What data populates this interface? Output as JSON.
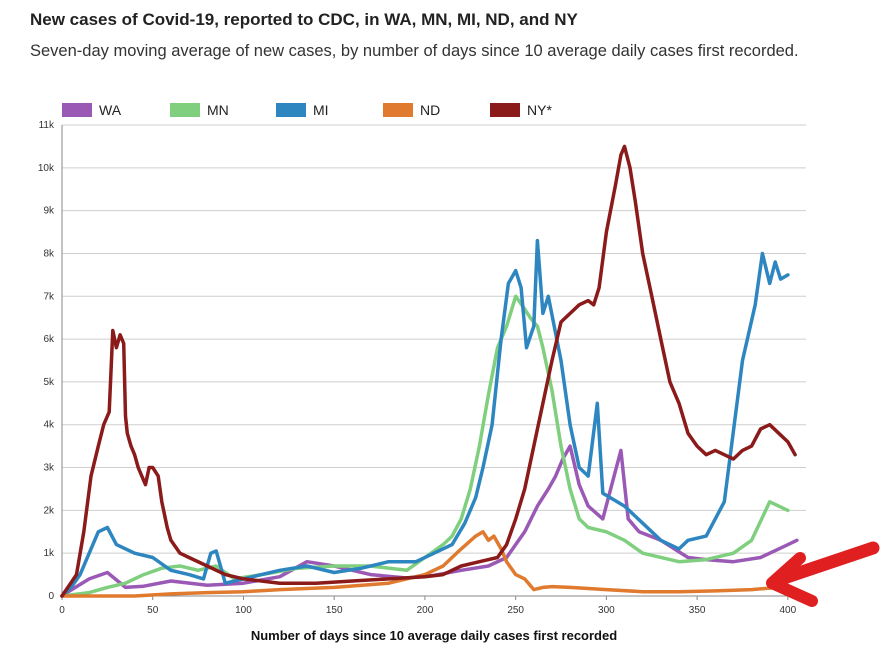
{
  "title": "New cases of Covid-19, reported to CDC, in WA, MN, MI, ND, and NY",
  "subtitle": "Seven-day moving average of new cases, by number of days since 10 average daily cases first recorded.",
  "chart_data": {
    "type": "line",
    "xlabel": "Number of days since 10 average daily cases first recorded",
    "ylabel": "",
    "xlim": [
      0,
      410
    ],
    "ylim": [
      0,
      11000
    ],
    "x_ticks": [
      0,
      50,
      100,
      150,
      200,
      250,
      300,
      350,
      400
    ],
    "x_tick_labels": [
      "0",
      "50",
      "100",
      "150",
      "200",
      "250",
      "300",
      "350",
      "400"
    ],
    "y_ticks": [
      0,
      1000,
      2000,
      3000,
      4000,
      5000,
      6000,
      7000,
      8000,
      9000,
      10000,
      11000
    ],
    "y_tick_labels": [
      "0",
      "1k",
      "2k",
      "3k",
      "4k",
      "5k",
      "6k",
      "7k",
      "8k",
      "9k",
      "10k",
      "11k"
    ],
    "grid": true,
    "legend_position": "top",
    "series": [
      {
        "name": "WA",
        "color": "#9b59b6",
        "x": [
          0,
          15,
          25,
          35,
          45,
          60,
          80,
          100,
          120,
          135,
          150,
          170,
          190,
          205,
          220,
          235,
          245,
          255,
          262,
          268,
          272,
          276,
          280,
          285,
          290,
          298,
          303,
          308,
          312,
          318,
          330,
          345,
          355,
          370,
          385,
          395,
          405
        ],
        "y": [
          10,
          400,
          550,
          200,
          230,
          350,
          250,
          300,
          450,
          800,
          700,
          500,
          420,
          480,
          600,
          700,
          900,
          1500,
          2100,
          2500,
          2800,
          3200,
          3500,
          2600,
          2100,
          1800,
          2600,
          3400,
          1800,
          1500,
          1300,
          900,
          850,
          800,
          900,
          1100,
          1300
        ]
      },
      {
        "name": "MN",
        "color": "#7fcf7f",
        "x": [
          0,
          15,
          25,
          35,
          45,
          55,
          65,
          75,
          85,
          95,
          110,
          130,
          150,
          170,
          190,
          200,
          210,
          215,
          220,
          225,
          230,
          235,
          240,
          245,
          250,
          255,
          258,
          262,
          265,
          270,
          275,
          280,
          285,
          290,
          300,
          310,
          320,
          340,
          355,
          370,
          380,
          390,
          400
        ],
        "y": [
          0,
          80,
          200,
          300,
          500,
          650,
          700,
          600,
          700,
          400,
          500,
          650,
          700,
          700,
          600,
          900,
          1200,
          1400,
          1800,
          2500,
          3500,
          4700,
          5800,
          6300,
          7000,
          6700,
          6500,
          6300,
          5800,
          4800,
          3500,
          2500,
          1800,
          1600,
          1500,
          1300,
          1000,
          800,
          850,
          1000,
          1300,
          2200,
          2000
        ]
      },
      {
        "name": "MI",
        "color": "#2e86c1",
        "x": [
          0,
          5,
          10,
          15,
          20,
          25,
          30,
          40,
          50,
          60,
          70,
          78,
          82,
          85,
          90,
          100,
          110,
          120,
          135,
          150,
          165,
          180,
          195,
          205,
          215,
          222,
          228,
          232,
          237,
          242,
          246,
          250,
          253,
          256,
          260,
          262,
          265,
          268,
          275,
          280,
          285,
          290,
          295,
          298,
          302,
          310,
          320,
          330,
          340,
          345,
          355,
          365,
          375,
          382,
          386,
          390,
          393,
          396,
          400
        ],
        "y": [
          0,
          200,
          500,
          1000,
          1500,
          1600,
          1200,
          1000,
          900,
          600,
          500,
          400,
          1000,
          1050,
          300,
          400,
          500,
          600,
          700,
          550,
          650,
          800,
          800,
          1000,
          1200,
          1700,
          2300,
          3000,
          4000,
          6000,
          7300,
          7600,
          7200,
          5800,
          6300,
          8300,
          6600,
          7000,
          5500,
          4000,
          3000,
          2800,
          4500,
          2400,
          2300,
          2100,
          1700,
          1300,
          1100,
          1300,
          1400,
          2200,
          5500,
          6800,
          8000,
          7300,
          7800,
          7400,
          7500
        ]
      },
      {
        "name": "ND",
        "color": "#e07a2e",
        "x": [
          0,
          20,
          40,
          60,
          80,
          100,
          120,
          150,
          180,
          200,
          210,
          220,
          228,
          232,
          235,
          238,
          242,
          245,
          250,
          255,
          260,
          265,
          270,
          280,
          300,
          320,
          340,
          360,
          380,
          395
        ],
        "y": [
          0,
          0,
          0,
          50,
          80,
          100,
          150,
          200,
          300,
          500,
          700,
          1100,
          1400,
          1500,
          1300,
          1400,
          1100,
          800,
          500,
          400,
          150,
          200,
          220,
          200,
          150,
          100,
          100,
          120,
          150,
          200
        ]
      },
      {
        "name": "NY*",
        "color": "#8b1a1a",
        "x": [
          0,
          8,
          12,
          16,
          20,
          23,
          26,
          28,
          30,
          32,
          34,
          35,
          36,
          38,
          40,
          42,
          44,
          46,
          48,
          50,
          53,
          55,
          58,
          60,
          65,
          70,
          80,
          90,
          100,
          120,
          140,
          160,
          180,
          200,
          210,
          220,
          230,
          240,
          245,
          250,
          255,
          260,
          265,
          270,
          275,
          280,
          285,
          290,
          293,
          296,
          300,
          305,
          308,
          310,
          313,
          316,
          320,
          325,
          330,
          335,
          340,
          345,
          350,
          355,
          360,
          365,
          370,
          375,
          380,
          385,
          390,
          395,
          400,
          404
        ],
        "y": [
          0,
          500,
          1500,
          2800,
          3500,
          4000,
          4300,
          6200,
          5800,
          6100,
          5900,
          4200,
          3800,
          3500,
          3300,
          3000,
          2800,
          2600,
          3000,
          3000,
          2800,
          2200,
          1600,
          1300,
          1000,
          900,
          700,
          500,
          400,
          300,
          300,
          350,
          400,
          450,
          500,
          700,
          800,
          900,
          1200,
          1800,
          2500,
          3500,
          4500,
          5500,
          6400,
          6600,
          6800,
          6900,
          6800,
          7200,
          8500,
          9600,
          10300,
          10500,
          10000,
          9200,
          8000,
          7000,
          6000,
          5000,
          4500,
          3800,
          3500,
          3300,
          3400,
          3300,
          3200,
          3400,
          3500,
          3900,
          4000,
          3800,
          3600,
          3300
        ]
      }
    ]
  },
  "overlay": {
    "arrow_color": "#e02020"
  }
}
